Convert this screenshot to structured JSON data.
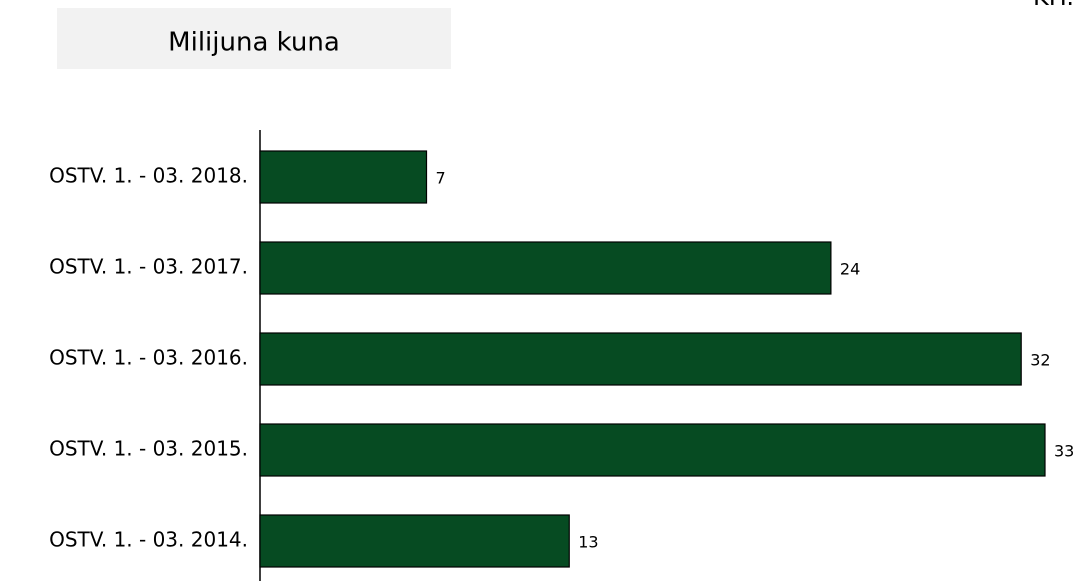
{
  "chart_data": {
    "type": "bar",
    "orientation": "horizontal",
    "title": "Milijuna kuna",
    "corner_label": "KH.",
    "categories": [
      "OSTV. 1. - 03. 2018.",
      "OSTV. 1. - 03. 2017.",
      "OSTV. 1. - 03. 2016.",
      "OSTV. 1. - 03. 2015.",
      "OSTV. 1. - 03. 2014."
    ],
    "values": [
      7,
      24,
      32,
      33,
      13
    ],
    "color": "#064b22"
  }
}
